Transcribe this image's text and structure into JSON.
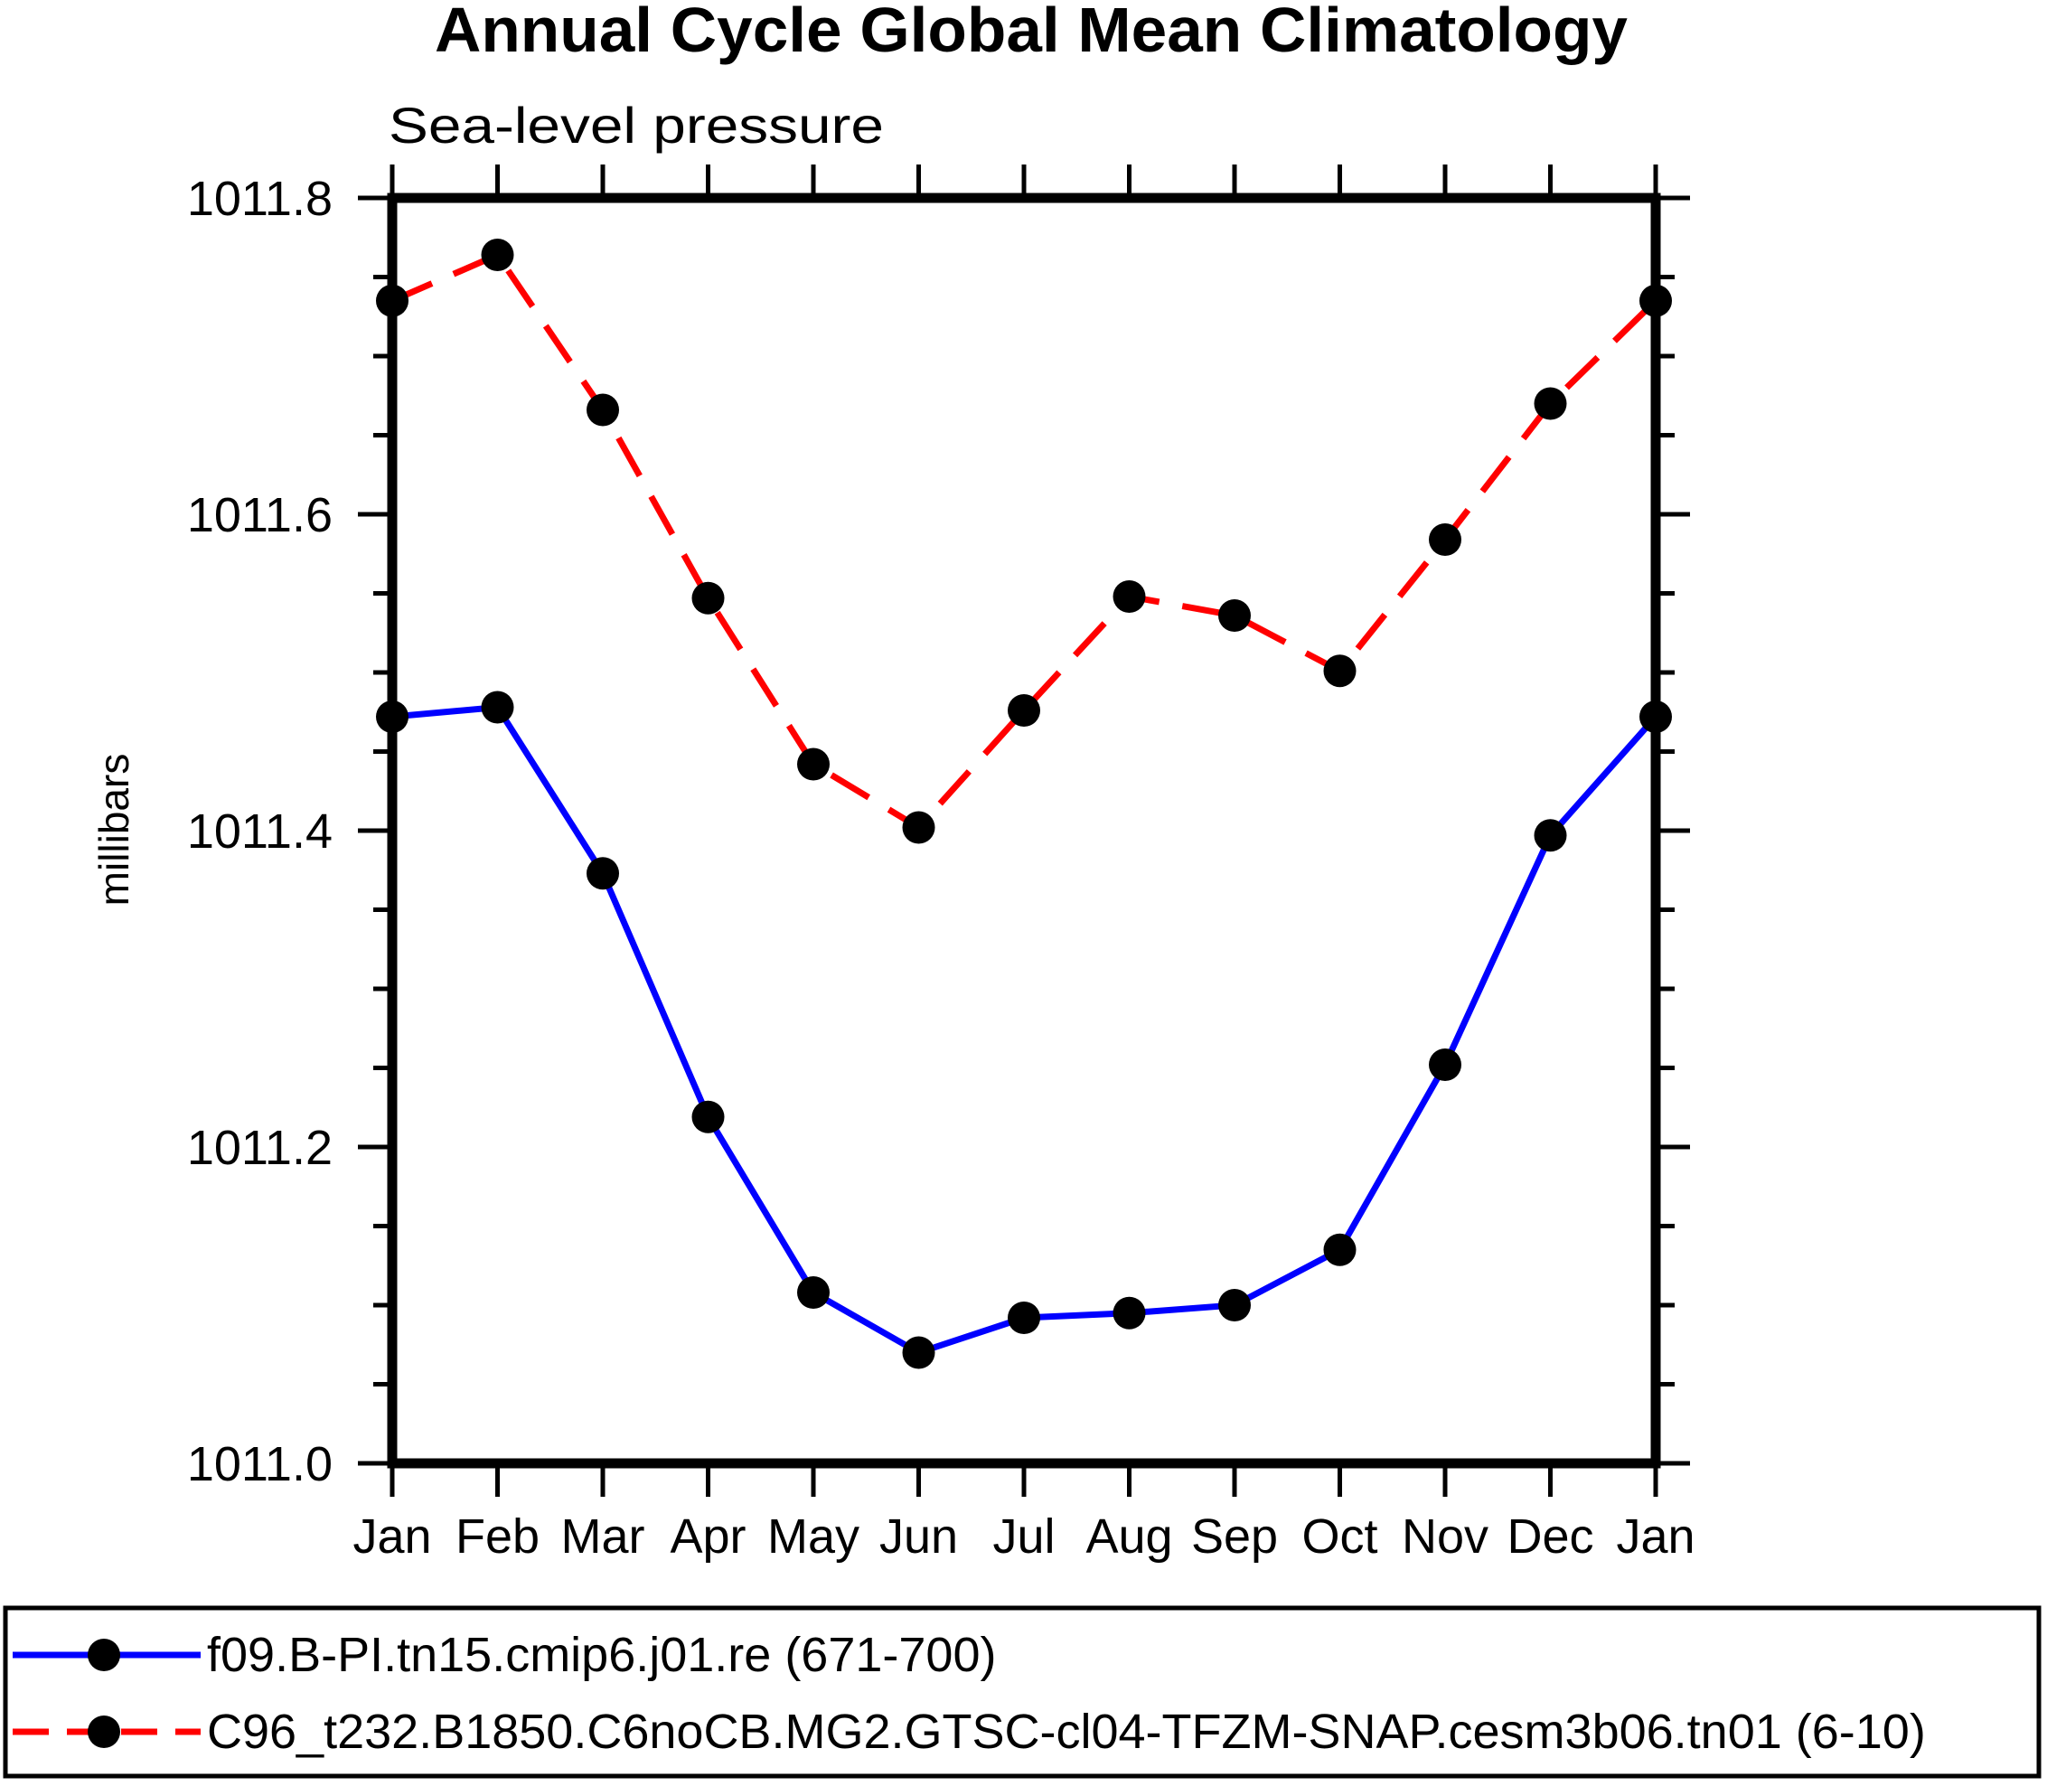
{
  "title": "Annual Cycle Global Mean Climatology",
  "subtitle": "Sea-level pressure",
  "colors": {
    "background": "#ffffff",
    "axis": "#000000",
    "text": "#000000",
    "series1": "#0000ff",
    "series2": "#ff0000",
    "marker": "#000000"
  },
  "chart_data": {
    "type": "line",
    "title": "Annual Cycle Global Mean Climatology",
    "subtitle": "Sea-level pressure",
    "xlabel": "",
    "ylabel": "millibars",
    "categories": [
      "Jan",
      "Feb",
      "Mar",
      "Apr",
      "May",
      "Jun",
      "Jul",
      "Aug",
      "Sep",
      "Oct",
      "Nov",
      "Dec",
      "Jan"
    ],
    "y_axis": {
      "min": 1011.0,
      "max": 1011.8,
      "major_step": 0.2,
      "minor_step": 0.05,
      "tick_labels": [
        "1011.0",
        "1011.2",
        "1011.4",
        "1011.6",
        "1011.8"
      ]
    },
    "grid": false,
    "legend_position": "bottom",
    "series": [
      {
        "name": "f09.B-PI.tn15.cmip6.j01.re (671-700)",
        "color": "#0000ff",
        "line_style": "solid",
        "marker": "filled-circle",
        "values": [
          1011.472,
          1011.478,
          1011.373,
          1011.219,
          1011.108,
          1011.07,
          1011.092,
          1011.095,
          1011.1,
          1011.135,
          1011.252,
          1011.397,
          1011.472
        ]
      },
      {
        "name": "C96_t232.B1850.C6noCB.MG2.GTSC-cl04-TFZM-SNAP.cesm3b06.tn01 (6-10)",
        "color": "#ff0000",
        "line_style": "dashed",
        "marker": "filled-circle",
        "values": [
          1011.735,
          1011.764,
          1011.666,
          1011.547,
          1011.442,
          1011.402,
          1011.476,
          1011.548,
          1011.536,
          1011.501,
          1011.584,
          1011.67,
          1011.735
        ]
      }
    ]
  }
}
